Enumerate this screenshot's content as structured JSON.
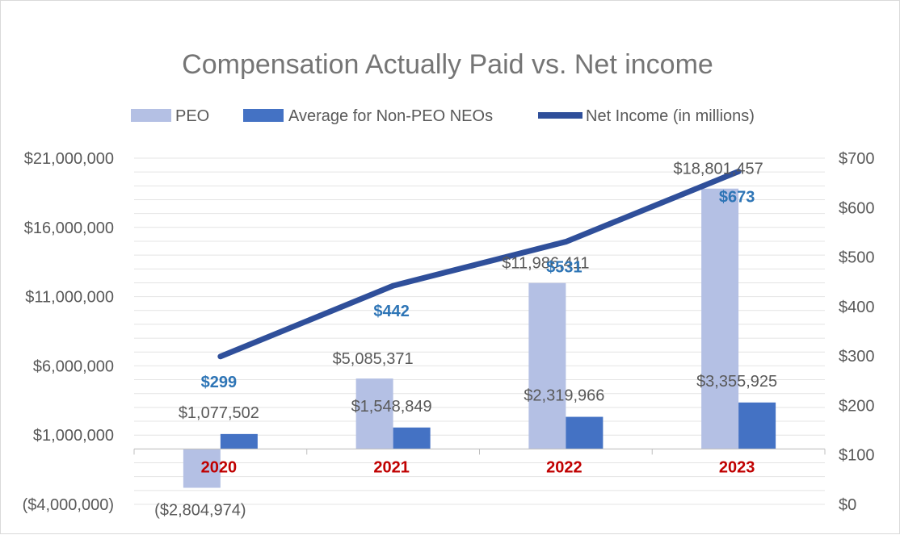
{
  "chart_data": {
    "type": "bar",
    "title": "Compensation Actually Paid vs. Net income",
    "categories": [
      "2020",
      "2021",
      "2022",
      "2023"
    ],
    "series": [
      {
        "name": "PEO",
        "kind": "bar",
        "axis": "left",
        "color": "#b4c0e4",
        "values": [
          -2804974,
          5085371,
          11986411,
          18801457
        ],
        "labels": [
          "($2,804,974)",
          "$5,085,371",
          "$11,986,411",
          "$18,801,457"
        ]
      },
      {
        "name": "Average for Non-PEO NEOs",
        "kind": "bar",
        "axis": "left",
        "color": "#4472c4",
        "values": [
          1077502,
          1548849,
          2319966,
          3355925
        ],
        "labels": [
          "$1,077,502",
          "$1,548,849",
          "$2,319,966",
          "$3,355,925"
        ]
      },
      {
        "name": "Net Income (in millions)",
        "kind": "line",
        "axis": "right",
        "color": "#2f4f9a",
        "values": [
          299,
          442,
          531,
          673
        ],
        "labels": [
          "$299",
          "$442",
          "$531",
          "$673"
        ]
      }
    ],
    "y_left": {
      "range": [
        -4000000,
        21000000
      ],
      "ticks": [
        {
          "value": 21000000,
          "label": "$21,000,000"
        },
        {
          "value": 16000000,
          "label": "$16,000,000"
        },
        {
          "value": 11000000,
          "label": "$11,000,000"
        },
        {
          "value": 6000000,
          "label": "$6,000,000"
        },
        {
          "value": 1000000,
          "label": "$1,000,000"
        },
        {
          "value": -4000000,
          "label": "($4,000,000)"
        }
      ]
    },
    "y_right": {
      "range": [
        0,
        700
      ],
      "ticks": [
        {
          "value": 700,
          "label": "$700"
        },
        {
          "value": 600,
          "label": "$600"
        },
        {
          "value": 500,
          "label": "$500"
        },
        {
          "value": 400,
          "label": "$400"
        },
        {
          "value": 300,
          "label": "$300"
        },
        {
          "value": 200,
          "label": "$200"
        },
        {
          "value": 100,
          "label": "$100"
        },
        {
          "value": 0,
          "label": "$0"
        }
      ]
    },
    "category_label_color": "#c00000",
    "net_income_label_color": "#2e75b6",
    "legend_position": "top",
    "grid": true
  }
}
